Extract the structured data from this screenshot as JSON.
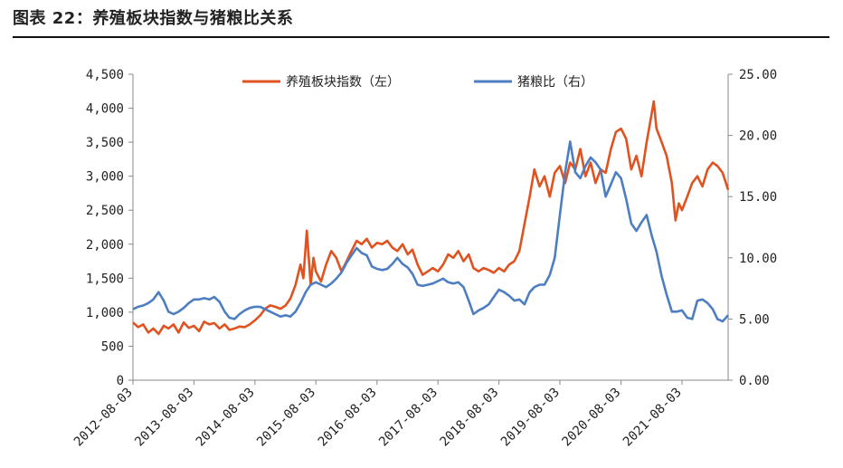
{
  "figure_title": "图表 22：养殖板块指数与猪粮比关系",
  "chart_data": {
    "type": "line",
    "x_tick_labels": [
      "2012-08-03",
      "2013-08-03",
      "2014-08-03",
      "2015-08-03",
      "2016-08-03",
      "2017-08-03",
      "2018-08-03",
      "2019-08-03",
      "2020-08-03",
      "2021-08-03"
    ],
    "x_range": [
      "2012-08-03",
      "2022-05-06"
    ],
    "y_left": {
      "range": [
        0,
        4500
      ],
      "ticks": [
        0,
        500,
        1000,
        1500,
        2000,
        2500,
        3000,
        3500,
        4000,
        4500
      ],
      "tick_labels": [
        "0",
        "500",
        "1,000",
        "1,500",
        "2,000",
        "2,500",
        "3,000",
        "3,500",
        "4,000",
        "4,500"
      ]
    },
    "y_right": {
      "range": [
        0,
        25
      ],
      "ticks": [
        0,
        5,
        10,
        15,
        20,
        25
      ],
      "tick_labels": [
        "0.00",
        "5.00",
        "10.00",
        "15.00",
        "20.00",
        "25.00"
      ]
    },
    "grid": false,
    "legend_position": "top",
    "series": [
      {
        "name": "养殖板块指数（左）",
        "axis": "left",
        "color": "#E0521F",
        "points": [
          [
            "2012-08-03",
            850
          ],
          [
            "2012-09-03",
            780
          ],
          [
            "2012-10-03",
            820
          ],
          [
            "2012-11-03",
            700
          ],
          [
            "2012-12-03",
            760
          ],
          [
            "2013-01-03",
            680
          ],
          [
            "2013-02-03",
            800
          ],
          [
            "2013-03-03",
            760
          ],
          [
            "2013-04-03",
            820
          ],
          [
            "2013-05-03",
            700
          ],
          [
            "2013-06-03",
            850
          ],
          [
            "2013-07-03",
            770
          ],
          [
            "2013-08-03",
            800
          ],
          [
            "2013-09-03",
            720
          ],
          [
            "2013-10-03",
            860
          ],
          [
            "2013-11-03",
            820
          ],
          [
            "2013-12-03",
            840
          ],
          [
            "2014-01-03",
            760
          ],
          [
            "2014-02-03",
            820
          ],
          [
            "2014-03-03",
            740
          ],
          [
            "2014-04-03",
            760
          ],
          [
            "2014-05-03",
            790
          ],
          [
            "2014-06-03",
            780
          ],
          [
            "2014-07-03",
            820
          ],
          [
            "2014-08-03",
            880
          ],
          [
            "2014-09-03",
            950
          ],
          [
            "2014-10-03",
            1050
          ],
          [
            "2014-11-03",
            1100
          ],
          [
            "2014-12-03",
            1080
          ],
          [
            "2015-01-03",
            1050
          ],
          [
            "2015-02-03",
            1100
          ],
          [
            "2015-03-03",
            1200
          ],
          [
            "2015-04-03",
            1400
          ],
          [
            "2015-05-03",
            1700
          ],
          [
            "2015-05-20",
            1500
          ],
          [
            "2015-06-10",
            2200
          ],
          [
            "2015-07-03",
            1400
          ],
          [
            "2015-07-20",
            1800
          ],
          [
            "2015-08-03",
            1600
          ],
          [
            "2015-09-03",
            1450
          ],
          [
            "2015-10-03",
            1700
          ],
          [
            "2015-11-03",
            1900
          ],
          [
            "2015-12-03",
            1800
          ],
          [
            "2016-01-03",
            1600
          ],
          [
            "2016-02-03",
            1750
          ],
          [
            "2016-03-03",
            1900
          ],
          [
            "2016-04-03",
            2050
          ],
          [
            "2016-05-03",
            2000
          ],
          [
            "2016-06-03",
            2080
          ],
          [
            "2016-07-03",
            1950
          ],
          [
            "2016-08-03",
            2020
          ],
          [
            "2016-09-03",
            2000
          ],
          [
            "2016-10-03",
            2050
          ],
          [
            "2016-11-03",
            1950
          ],
          [
            "2016-12-03",
            1900
          ],
          [
            "2017-01-03",
            2000
          ],
          [
            "2017-02-03",
            1850
          ],
          [
            "2017-03-03",
            1920
          ],
          [
            "2017-04-03",
            1700
          ],
          [
            "2017-05-03",
            1550
          ],
          [
            "2017-06-03",
            1600
          ],
          [
            "2017-07-03",
            1650
          ],
          [
            "2017-08-03",
            1600
          ],
          [
            "2017-09-03",
            1700
          ],
          [
            "2017-10-03",
            1850
          ],
          [
            "2017-11-03",
            1800
          ],
          [
            "2017-12-03",
            1900
          ],
          [
            "2018-01-03",
            1750
          ],
          [
            "2018-02-03",
            1850
          ],
          [
            "2018-03-03",
            1650
          ],
          [
            "2018-04-03",
            1600
          ],
          [
            "2018-05-03",
            1650
          ],
          [
            "2018-06-03",
            1620
          ],
          [
            "2018-07-03",
            1580
          ],
          [
            "2018-08-03",
            1650
          ],
          [
            "2018-09-03",
            1600
          ],
          [
            "2018-10-03",
            1700
          ],
          [
            "2018-11-03",
            1750
          ],
          [
            "2018-12-03",
            1900
          ],
          [
            "2019-01-03",
            2300
          ],
          [
            "2019-02-03",
            2700
          ],
          [
            "2019-03-03",
            3100
          ],
          [
            "2019-04-03",
            2850
          ],
          [
            "2019-05-03",
            3000
          ],
          [
            "2019-06-03",
            2700
          ],
          [
            "2019-07-03",
            3050
          ],
          [
            "2019-08-03",
            3150
          ],
          [
            "2019-09-03",
            2900
          ],
          [
            "2019-10-03",
            3200
          ],
          [
            "2019-11-03",
            3100
          ],
          [
            "2019-12-03",
            3400
          ],
          [
            "2020-01-03",
            3000
          ],
          [
            "2020-02-03",
            3200
          ],
          [
            "2020-03-03",
            2900
          ],
          [
            "2020-04-03",
            3100
          ],
          [
            "2020-05-03",
            3050
          ],
          [
            "2020-06-03",
            3400
          ],
          [
            "2020-07-03",
            3650
          ],
          [
            "2020-08-03",
            3700
          ],
          [
            "2020-09-03",
            3550
          ],
          [
            "2020-10-03",
            3100
          ],
          [
            "2020-11-03",
            3300
          ],
          [
            "2020-12-03",
            3000
          ],
          [
            "2021-01-03",
            3500
          ],
          [
            "2021-01-25",
            3800
          ],
          [
            "2021-02-15",
            4100
          ],
          [
            "2021-03-03",
            3700
          ],
          [
            "2021-04-03",
            3500
          ],
          [
            "2021-05-03",
            3300
          ],
          [
            "2021-06-03",
            2900
          ],
          [
            "2021-06-25",
            2350
          ],
          [
            "2021-07-15",
            2600
          ],
          [
            "2021-08-03",
            2500
          ],
          [
            "2021-09-03",
            2700
          ],
          [
            "2021-10-03",
            2900
          ],
          [
            "2021-11-03",
            3000
          ],
          [
            "2021-12-03",
            2850
          ],
          [
            "2022-01-03",
            3100
          ],
          [
            "2022-02-03",
            3200
          ],
          [
            "2022-03-03",
            3150
          ],
          [
            "2022-04-03",
            3050
          ],
          [
            "2022-05-06",
            2800
          ]
        ]
      },
      {
        "name": "猪粮比（右）",
        "axis": "right",
        "color": "#4D7EC2",
        "points": [
          [
            "2012-08-03",
            5.8
          ],
          [
            "2012-09-03",
            6.0
          ],
          [
            "2012-10-03",
            6.1
          ],
          [
            "2012-11-03",
            6.3
          ],
          [
            "2012-12-03",
            6.6
          ],
          [
            "2013-01-03",
            7.2
          ],
          [
            "2013-02-03",
            6.5
          ],
          [
            "2013-03-03",
            5.6
          ],
          [
            "2013-04-03",
            5.4
          ],
          [
            "2013-05-03",
            5.6
          ],
          [
            "2013-06-03",
            5.9
          ],
          [
            "2013-07-03",
            6.3
          ],
          [
            "2013-08-03",
            6.6
          ],
          [
            "2013-09-03",
            6.6
          ],
          [
            "2013-10-03",
            6.7
          ],
          [
            "2013-11-03",
            6.6
          ],
          [
            "2013-12-03",
            6.8
          ],
          [
            "2014-01-03",
            6.4
          ],
          [
            "2014-02-03",
            5.6
          ],
          [
            "2014-03-03",
            5.1
          ],
          [
            "2014-04-03",
            5.0
          ],
          [
            "2014-05-03",
            5.4
          ],
          [
            "2014-06-03",
            5.7
          ],
          [
            "2014-07-03",
            5.9
          ],
          [
            "2014-08-03",
            6.0
          ],
          [
            "2014-09-03",
            6.0
          ],
          [
            "2014-10-03",
            5.8
          ],
          [
            "2014-11-03",
            5.6
          ],
          [
            "2014-12-03",
            5.4
          ],
          [
            "2015-01-03",
            5.2
          ],
          [
            "2015-02-03",
            5.3
          ],
          [
            "2015-03-03",
            5.2
          ],
          [
            "2015-04-03",
            5.6
          ],
          [
            "2015-05-03",
            6.3
          ],
          [
            "2015-06-03",
            7.2
          ],
          [
            "2015-07-03",
            7.8
          ],
          [
            "2015-08-03",
            8.0
          ],
          [
            "2015-09-03",
            7.8
          ],
          [
            "2015-10-03",
            7.6
          ],
          [
            "2015-11-03",
            7.9
          ],
          [
            "2015-12-03",
            8.3
          ],
          [
            "2016-01-03",
            8.8
          ],
          [
            "2016-02-03",
            9.6
          ],
          [
            "2016-03-03",
            10.2
          ],
          [
            "2016-04-03",
            10.8
          ],
          [
            "2016-05-03",
            10.4
          ],
          [
            "2016-06-03",
            10.2
          ],
          [
            "2016-07-03",
            9.3
          ],
          [
            "2016-08-03",
            9.1
          ],
          [
            "2016-09-03",
            9.0
          ],
          [
            "2016-10-03",
            9.1
          ],
          [
            "2016-11-03",
            9.5
          ],
          [
            "2016-12-03",
            10.0
          ],
          [
            "2017-01-03",
            9.5
          ],
          [
            "2017-02-03",
            9.2
          ],
          [
            "2017-03-03",
            8.7
          ],
          [
            "2017-04-03",
            7.8
          ],
          [
            "2017-05-03",
            7.7
          ],
          [
            "2017-06-03",
            7.8
          ],
          [
            "2017-07-03",
            7.9
          ],
          [
            "2017-08-03",
            8.1
          ],
          [
            "2017-09-03",
            8.3
          ],
          [
            "2017-10-03",
            8.0
          ],
          [
            "2017-11-03",
            7.9
          ],
          [
            "2017-12-03",
            8.0
          ],
          [
            "2018-01-03",
            7.6
          ],
          [
            "2018-02-03",
            6.5
          ],
          [
            "2018-03-03",
            5.4
          ],
          [
            "2018-04-03",
            5.7
          ],
          [
            "2018-05-03",
            5.9
          ],
          [
            "2018-06-03",
            6.2
          ],
          [
            "2018-07-03",
            6.8
          ],
          [
            "2018-08-03",
            7.4
          ],
          [
            "2018-09-03",
            7.2
          ],
          [
            "2018-10-03",
            6.9
          ],
          [
            "2018-11-03",
            6.5
          ],
          [
            "2018-12-03",
            6.6
          ],
          [
            "2019-01-03",
            6.2
          ],
          [
            "2019-02-03",
            7.2
          ],
          [
            "2019-03-03",
            7.6
          ],
          [
            "2019-04-03",
            7.8
          ],
          [
            "2019-05-03",
            7.8
          ],
          [
            "2019-06-03",
            8.6
          ],
          [
            "2019-07-03",
            10.0
          ],
          [
            "2019-08-03",
            13.5
          ],
          [
            "2019-09-03",
            17.0
          ],
          [
            "2019-10-03",
            19.5
          ],
          [
            "2019-11-03",
            17.0
          ],
          [
            "2019-12-03",
            16.5
          ],
          [
            "2020-01-03",
            17.5
          ],
          [
            "2020-02-03",
            18.2
          ],
          [
            "2020-03-03",
            17.8
          ],
          [
            "2020-04-03",
            17.2
          ],
          [
            "2020-05-03",
            15.0
          ],
          [
            "2020-06-03",
            16.0
          ],
          [
            "2020-07-03",
            17.0
          ],
          [
            "2020-08-03",
            16.5
          ],
          [
            "2020-09-03",
            14.8
          ],
          [
            "2020-10-03",
            12.8
          ],
          [
            "2020-11-03",
            12.2
          ],
          [
            "2020-12-03",
            12.9
          ],
          [
            "2021-01-03",
            13.5
          ],
          [
            "2021-02-03",
            11.8
          ],
          [
            "2021-03-03",
            10.5
          ],
          [
            "2021-04-03",
            8.5
          ],
          [
            "2021-05-03",
            7.0
          ],
          [
            "2021-06-03",
            5.6
          ],
          [
            "2021-07-03",
            5.6
          ],
          [
            "2021-08-03",
            5.7
          ],
          [
            "2021-09-03",
            5.1
          ],
          [
            "2021-10-03",
            5.0
          ],
          [
            "2021-11-03",
            6.5
          ],
          [
            "2021-12-03",
            6.6
          ],
          [
            "2022-01-03",
            6.3
          ],
          [
            "2022-02-03",
            5.8
          ],
          [
            "2022-03-03",
            5.0
          ],
          [
            "2022-04-03",
            4.8
          ],
          [
            "2022-05-06",
            5.3
          ]
        ]
      }
    ]
  }
}
